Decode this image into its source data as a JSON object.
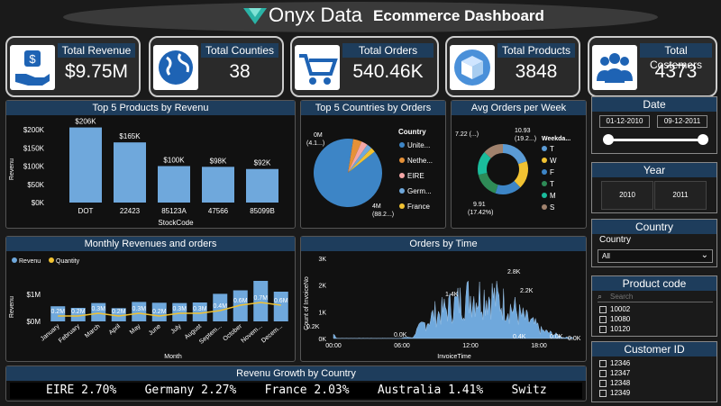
{
  "header": {
    "brand": "Onyx Data",
    "title": "Ecommerce Dashboard"
  },
  "kpis": [
    {
      "label": "Total Revenue",
      "value": "$9.75M",
      "icon": "money-hand-icon"
    },
    {
      "label": "Total Counties",
      "value": "38",
      "icon": "globe-icon"
    },
    {
      "label": "Total Orders",
      "value": "540.46K",
      "icon": "cart-icon"
    },
    {
      "label": "Total Products",
      "value": "3848",
      "icon": "box-icon"
    },
    {
      "label": "Total Costemers",
      "value": "4373",
      "icon": "people-icon"
    }
  ],
  "top_products": {
    "title": "Top 5 Products by Revenu",
    "xlabel": "StockCode",
    "ylabel": "Revenu",
    "yticks": [
      "$200K",
      "$150K",
      "$100K",
      "$50K",
      "$0K"
    ],
    "categories": [
      "DOT",
      "22423",
      "85123A",
      "47566",
      "85099B"
    ],
    "values": [
      206,
      165,
      100,
      98,
      92
    ],
    "labels": [
      "$206K",
      "$165K",
      "$100K",
      "$98K",
      "$92K"
    ]
  },
  "top_countries": {
    "title": "Top 5 Countries by Orders",
    "legend_title": "Country",
    "legend": [
      "Unite...",
      "Nethe...",
      "EIRE",
      "Germ...",
      "France"
    ],
    "colors": [
      "#3d85c6",
      "#e69138",
      "#f4a6a6",
      "#6fa8dc",
      "#f1c232"
    ],
    "label_big": "4M",
    "label_big2": "(88.2...)",
    "label_small": "0M",
    "label_small2": "(4.1...)"
  },
  "avg_orders": {
    "title": "Avg Orders per Week",
    "legend_title": "Weekda...",
    "legend": [
      "T",
      "W",
      "F",
      "T",
      "M",
      "S"
    ],
    "colors": [
      "#5b9bd5",
      "#f1c232",
      "#3d85c6",
      "#2e8b57",
      "#1abc9c",
      "#a0826d"
    ],
    "label_a": "7.22 (...)",
    "label_b": "10.93",
    "label_b2": "(19.2...)",
    "label_c": "9.91",
    "label_c2": "(17.42%)"
  },
  "slicers": {
    "date": {
      "title": "Date",
      "start": "01-12-2010",
      "end": "09-12-2011"
    },
    "year": {
      "title": "Year",
      "options": [
        "2010",
        "2011"
      ]
    },
    "country": {
      "title": "Country",
      "label": "Country",
      "selected": "All"
    },
    "product": {
      "title": "Product code",
      "placeholder": "Search",
      "items": [
        "10002",
        "10080",
        "10120"
      ]
    },
    "customer": {
      "title": "Customer ID",
      "items": [
        "12346",
        "12347",
        "12348",
        "12349"
      ]
    }
  },
  "monthly": {
    "title": "Monthly Revenues and orders",
    "legend": [
      "Revenu",
      "Quantity"
    ],
    "xlabel": "Month",
    "ylabel": "Revenu",
    "yticks": [
      "$1M",
      "$0M"
    ],
    "months": [
      "January",
      "February",
      "March",
      "April",
      "May",
      "June",
      "July",
      "August",
      "Septem...",
      "October",
      "Novem...",
      "Decem..."
    ],
    "revenue": [
      0.56,
      0.5,
      0.68,
      0.49,
      0.72,
      0.69,
      0.68,
      0.7,
      1.02,
      1.15,
      1.5,
      1.1
    ],
    "quantity": [
      0.2,
      0.2,
      0.3,
      0.2,
      0.3,
      0.2,
      0.3,
      0.3,
      0.4,
      0.6,
      0.7,
      0.6
    ],
    "labels": [
      "0.2M",
      "0.2M",
      "0.3M",
      "0.2M",
      "0.3M",
      "0.2M",
      "0.3M",
      "0.3M",
      "0.4M",
      "0.6M",
      "0.7M",
      "0.6M"
    ]
  },
  "orders_time": {
    "title": "Orders by Time",
    "xlabel": "InvoiceTime",
    "ylabel": "Count of InvoiceNo",
    "xticks": [
      "00:00",
      "06:00",
      "12:00",
      "18:00"
    ],
    "yticks": [
      "3K",
      "2K",
      "1K",
      "0K"
    ],
    "annotations": [
      "0.2K",
      "0.0K",
      "1.4K",
      "2.8K",
      "2.2K",
      "0.4K",
      "0.0K",
      "0.0K"
    ]
  },
  "growth": {
    "title": "Revenu Growth by Country",
    "ticker": "EIRE 2.70%    Germany 2.27%    France 2.03%    Australia 1.41%    Switz"
  },
  "chart_data": [
    {
      "type": "bar",
      "title": "Top 5 Products by Revenu",
      "categories": [
        "DOT",
        "22423",
        "85123A",
        "47566",
        "85099B"
      ],
      "values": [
        206,
        165,
        100,
        98,
        92
      ],
      "xlabel": "StockCode",
      "ylabel": "Revenu",
      "ylim": [
        0,
        200
      ]
    },
    {
      "type": "pie",
      "title": "Top 5 Countries by Orders",
      "categories": [
        "Unite...",
        "Nethe...",
        "EIRE",
        "Germ...",
        "France"
      ],
      "values": [
        88.2,
        4.1,
        3.0,
        2.5,
        2.2
      ]
    },
    {
      "type": "pie",
      "title": "Avg Orders per Week",
      "categories": [
        "T",
        "W",
        "F",
        "T",
        "M",
        "S"
      ],
      "values": [
        19.2,
        17.42,
        16.5,
        16,
        15,
        12.7
      ]
    },
    {
      "type": "bar",
      "title": "Monthly Revenues and orders",
      "categories": [
        "January",
        "February",
        "March",
        "April",
        "May",
        "June",
        "July",
        "August",
        "Septem...",
        "October",
        "Novem...",
        "Decem..."
      ],
      "series": [
        {
          "name": "Revenu",
          "values": [
            0.56,
            0.5,
            0.68,
            0.49,
            0.72,
            0.69,
            0.68,
            0.7,
            1.02,
            1.15,
            1.5,
            1.1
          ]
        },
        {
          "name": "Quantity",
          "values": [
            0.2,
            0.2,
            0.3,
            0.2,
            0.3,
            0.2,
            0.3,
            0.3,
            0.4,
            0.6,
            0.7,
            0.6
          ]
        }
      ],
      "xlabel": "Month",
      "ylabel": "Revenu"
    },
    {
      "type": "area",
      "title": "Orders by Time",
      "x": [
        "00:00",
        "06:00",
        "12:00",
        "18:00"
      ],
      "xlabel": "InvoiceTime",
      "ylabel": "Count of InvoiceNo",
      "ylim": [
        0,
        3000
      ]
    }
  ]
}
